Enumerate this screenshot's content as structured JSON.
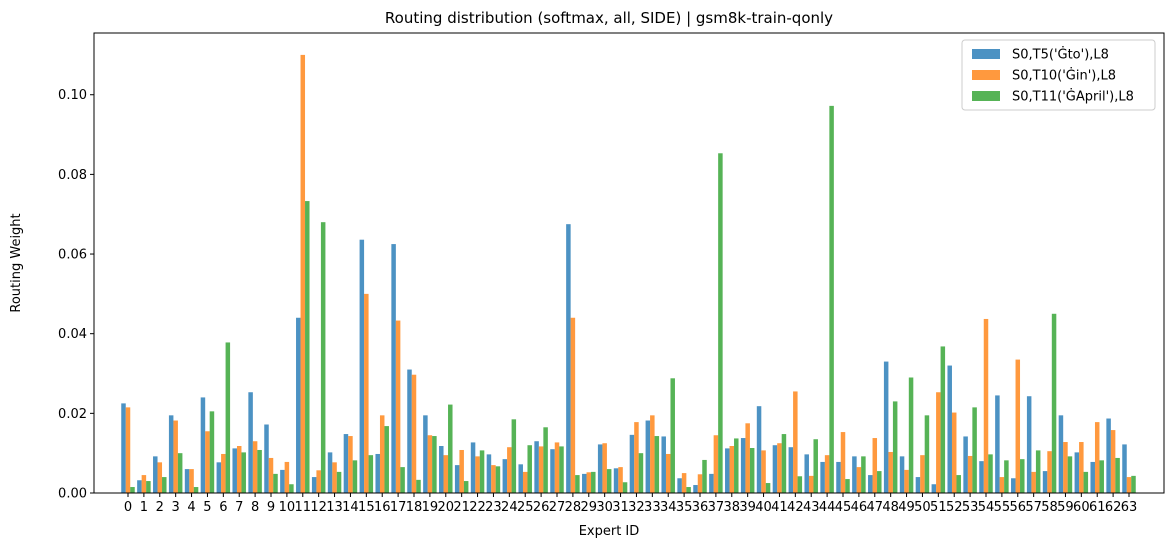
{
  "chart_data": {
    "type": "bar",
    "title": "Routing distribution (softmax, all, SIDE) | gsm8k-train-qonly",
    "xlabel": "Expert ID",
    "ylabel": "Routing Weight",
    "ylim": [
      0,
      0.1155
    ],
    "yticks": [
      0.0,
      0.02,
      0.04,
      0.06,
      0.08,
      0.1
    ],
    "ytick_labels": [
      "0.00",
      "0.02",
      "0.04",
      "0.06",
      "0.08",
      "0.10"
    ],
    "grid": false,
    "legend_position": "top-right",
    "categories": [
      "0",
      "1",
      "2",
      "3",
      "4",
      "5",
      "6",
      "7",
      "8",
      "9",
      "10",
      "11",
      "12",
      "13",
      "14",
      "15",
      "16",
      "17",
      "18",
      "19",
      "20",
      "21",
      "22",
      "23",
      "24",
      "25",
      "26",
      "27",
      "28",
      "29",
      "30",
      "31",
      "32",
      "33",
      "34",
      "35",
      "36",
      "37",
      "38",
      "39",
      "40",
      "41",
      "42",
      "43",
      "44",
      "45",
      "46",
      "47",
      "48",
      "49",
      "50",
      "51",
      "52",
      "53",
      "54",
      "55",
      "56",
      "57",
      "58",
      "59",
      "60",
      "61",
      "62",
      "63"
    ],
    "series": [
      {
        "name": "S0,T5('Ġto'),L8",
        "color": "#1f77b4",
        "values": [
          0.0225,
          0.0032,
          0.0092,
          0.0195,
          0.006,
          0.024,
          0.0077,
          0.0112,
          0.0253,
          0.0172,
          0.0058,
          0.044,
          0.004,
          0.0102,
          0.0148,
          0.0636,
          0.0098,
          0.0625,
          0.031,
          0.0195,
          0.0118,
          0.007,
          0.0127,
          0.0097,
          0.0085,
          0.0072,
          0.013,
          0.011,
          0.0675,
          0.0048,
          0.0122,
          0.0062,
          0.0146,
          0.0182,
          0.0142,
          0.0037,
          0.002,
          0.0048,
          0.0112,
          0.0138,
          0.0218,
          0.012,
          0.0115,
          0.0097,
          0.0078,
          0.0078,
          0.0092,
          0.0045,
          0.033,
          0.0092,
          0.004,
          0.0022,
          0.032,
          0.0142,
          0.008,
          0.0245,
          0.0037,
          0.0243,
          0.0055,
          0.0195,
          0.0102,
          0.0078,
          0.0187,
          0.0122
        ]
      },
      {
        "name": "S0,T10('Ġin'),L8",
        "color": "#ff7f0e",
        "values": [
          0.0215,
          0.0045,
          0.0077,
          0.0182,
          0.006,
          0.0155,
          0.0098,
          0.0118,
          0.013,
          0.0088,
          0.0078,
          0.11,
          0.0057,
          0.0077,
          0.0143,
          0.05,
          0.0195,
          0.0433,
          0.0297,
          0.0145,
          0.0095,
          0.0108,
          0.0092,
          0.007,
          0.0115,
          0.0053,
          0.0117,
          0.0127,
          0.044,
          0.0052,
          0.0125,
          0.0065,
          0.0178,
          0.0195,
          0.0098,
          0.005,
          0.0047,
          0.0145,
          0.0118,
          0.0175,
          0.0107,
          0.0125,
          0.0255,
          0.0043,
          0.0095,
          0.0153,
          0.0065,
          0.0138,
          0.0103,
          0.0058,
          0.0095,
          0.0253,
          0.0202,
          0.0093,
          0.0437,
          0.004,
          0.0335,
          0.0053,
          0.0105,
          0.0128,
          0.0128,
          0.0178,
          0.0158,
          0.004
        ]
      },
      {
        "name": "S0,T11('ĠApril'),L8",
        "color": "#2ca02c",
        "values": [
          0.0015,
          0.003,
          0.004,
          0.01,
          0.0015,
          0.0205,
          0.0378,
          0.0102,
          0.0108,
          0.0048,
          0.0022,
          0.0733,
          0.068,
          0.0053,
          0.0082,
          0.0095,
          0.0168,
          0.0065,
          0.0033,
          0.0143,
          0.0222,
          0.003,
          0.0107,
          0.0067,
          0.0185,
          0.012,
          0.0165,
          0.0117,
          0.0045,
          0.0053,
          0.006,
          0.0027,
          0.01,
          0.0143,
          0.0288,
          0.0015,
          0.0083,
          0.0853,
          0.0137,
          0.0113,
          0.0025,
          0.0148,
          0.0042,
          0.0135,
          0.0972,
          0.0035,
          0.0092,
          0.0055,
          0.023,
          0.029,
          0.0195,
          0.0368,
          0.0045,
          0.0215,
          0.0097,
          0.0082,
          0.0085,
          0.0107,
          0.045,
          0.0092,
          0.0053,
          0.0082,
          0.0088,
          0.0043
        ]
      }
    ]
  }
}
